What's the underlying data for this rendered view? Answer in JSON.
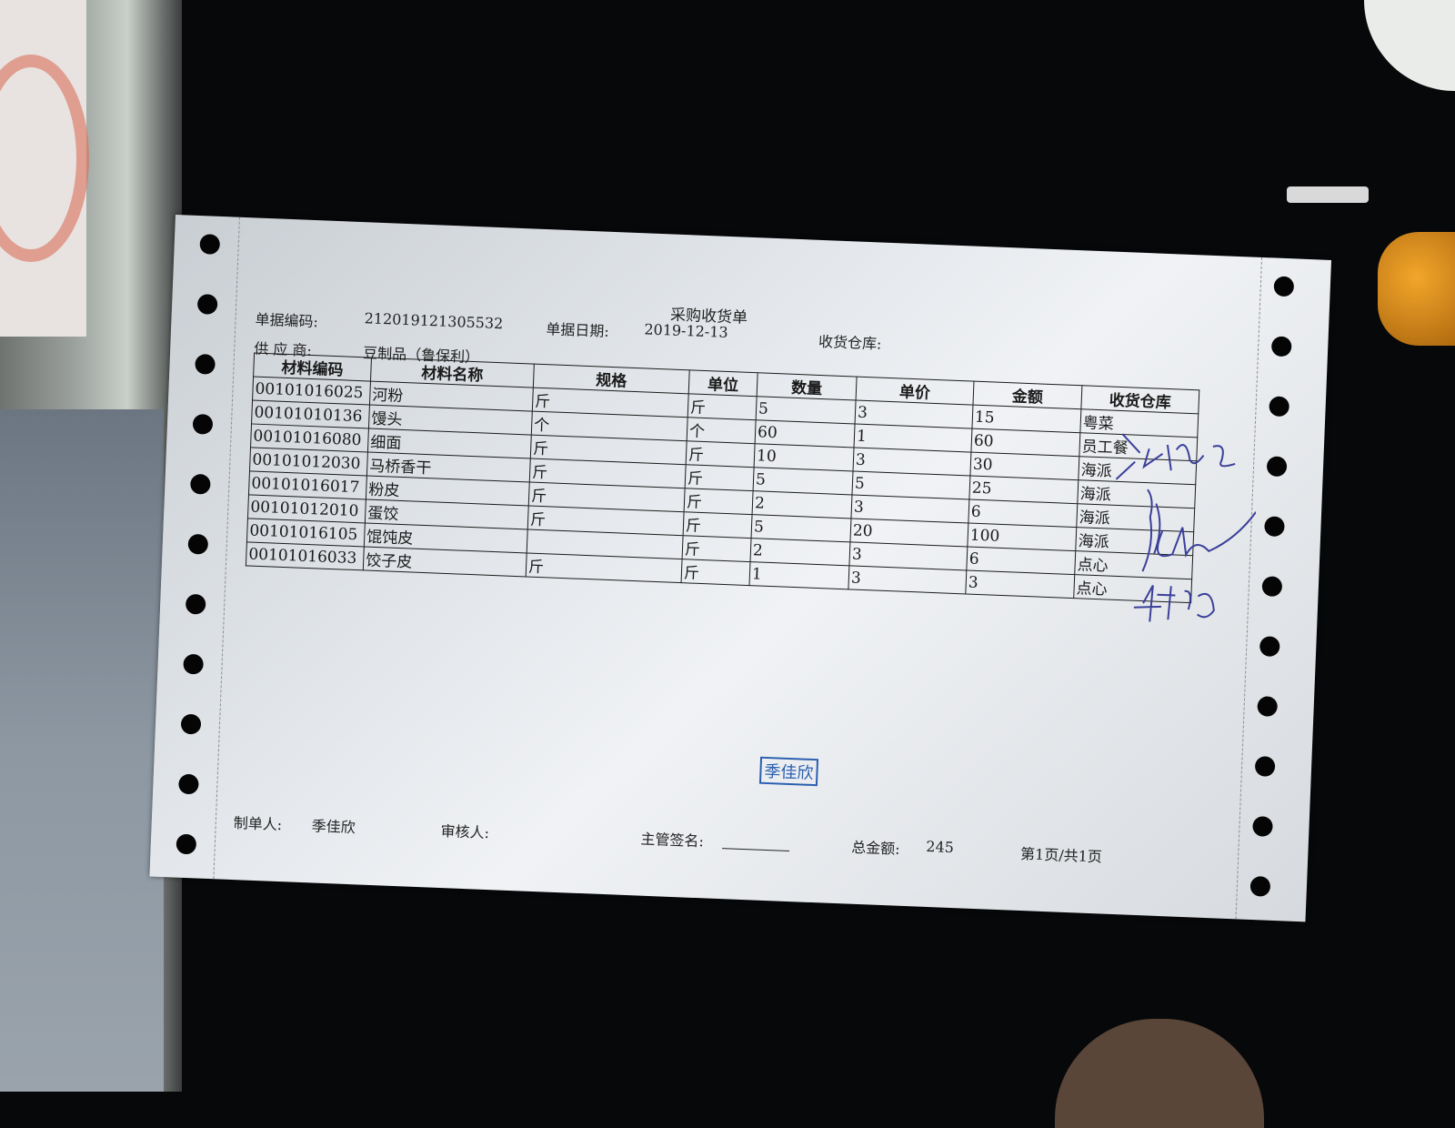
{
  "document": {
    "title": "采购收货单",
    "doc_no_label": "单据编码:",
    "doc_no": "212019121305532",
    "date_label": "单据日期:",
    "date": "2019-12-13",
    "warehouse_label": "收货仓库:",
    "warehouse": "",
    "supplier_label": "供 应 商:",
    "supplier": "豆制品（鲁保利）"
  },
  "table": {
    "headers": [
      "材料编码",
      "材料名称",
      "规格",
      "单位",
      "数量",
      "单价",
      "金额",
      "收货仓库"
    ],
    "rows": [
      [
        "00101016025",
        "河粉",
        "斤",
        "斤",
        "5",
        "3",
        "15",
        "粤菜"
      ],
      [
        "00101010136",
        "馒头",
        "个",
        "个",
        "60",
        "1",
        "60",
        "员工餐"
      ],
      [
        "00101016080",
        "细面",
        "斤",
        "斤",
        "10",
        "3",
        "30",
        "海派"
      ],
      [
        "00101012030",
        "马桥香干",
        "斤",
        "斤",
        "5",
        "5",
        "25",
        "海派"
      ],
      [
        "00101016017",
        "粉皮",
        "斤",
        "斤",
        "2",
        "3",
        "6",
        "海派"
      ],
      [
        "00101012010",
        "蛋饺",
        "斤",
        "斤",
        "5",
        "20",
        "100",
        "海派"
      ],
      [
        "00101016105",
        "馄饨皮",
        "",
        "斤",
        "2",
        "3",
        "6",
        "点心"
      ],
      [
        "00101016033",
        "饺子皮",
        "斤",
        "斤",
        "1",
        "3",
        "3",
        "点心"
      ]
    ]
  },
  "stamp": {
    "text": "季佳欣",
    "color": "#2a5fb0"
  },
  "footer": {
    "maker_label": "制单人:",
    "maker": "季佳欣",
    "reviewer_label": "审核人:",
    "reviewer": "",
    "supervisor_label": "主管签名:",
    "total_label": "总金额:",
    "total": "245",
    "page": "第1页/共1页"
  }
}
